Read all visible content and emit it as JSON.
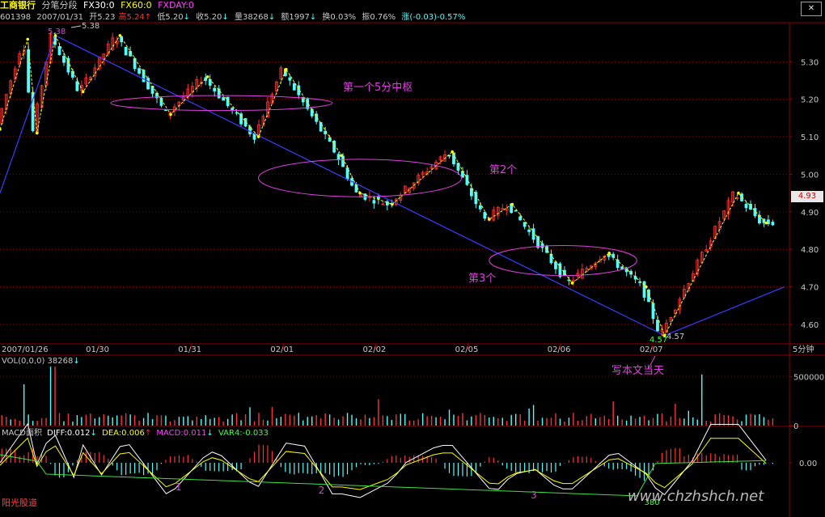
{
  "header": {
    "stock_name": "工商银行",
    "period_label": "分笔分段",
    "fx30": "FX30:0",
    "fx60": "FX60:0",
    "fxday": "FXDAY:0"
  },
  "quote": {
    "code": "601398",
    "date": "2007/01/31",
    "open": "开5.23",
    "high": "高5.24",
    "high_arrow": "↑",
    "low": "低5.20",
    "low_arrow": "↓",
    "close": "收5.20",
    "close_arrow": "↓",
    "volume": "量38268",
    "volume_arrow": "↓",
    "amount": "额1997",
    "amount_arrow": "↓",
    "turnover": "换0.03%",
    "amplitude": "振0.76%",
    "change": "涨(-0.03)-0.57%"
  },
  "price_tag": "4.93",
  "volume_panel": {
    "title": "VOL(0,0,0) 38268",
    "arrow": "↓"
  },
  "macd_panel": {
    "title": "MACD面积",
    "diff": "DIFF:0.012",
    "diff_arrow": "↓",
    "dea": "DEA:0.006",
    "dea_arrow": "↑",
    "macd": "MACD:0.011",
    "macd_arrow": "↓",
    "var4": "VAR4:-0.033"
  },
  "footer_name": "阳光股道",
  "watermark": "www.chzhshch.net",
  "colors": {
    "up": "#ff3232",
    "down": "#54fcfc",
    "stroke_line": "#ffff00",
    "trend_line": "#3c3cff",
    "annotation": "#e040e0",
    "grid": "#8b0000",
    "axis_text": "#c8c8c8"
  },
  "chart_data": [
    {
      "type": "candlestick",
      "title": "",
      "x_ticks": [
        "2007/01/26",
        "01/30",
        "01/31",
        "02/01",
        "02/02",
        "02/05",
        "02/06",
        "02/07"
      ],
      "y_ticks": [
        5.3,
        5.2,
        5.1,
        5.0,
        4.9,
        4.8,
        4.7,
        4.6
      ],
      "ylim": [
        4.55,
        5.4
      ],
      "period_label": "5分钟",
      "stroke_points": [
        {
          "x": 0.0,
          "y": 5.12
        },
        {
          "x": 0.3,
          "y": 5.36
        },
        {
          "x": 0.4,
          "y": 5.11
        },
        {
          "x": 0.6,
          "y": 5.37
        },
        {
          "x": 0.9,
          "y": 5.22
        },
        {
          "x": 1.3,
          "y": 5.37
        },
        {
          "x": 1.85,
          "y": 5.16
        },
        {
          "x": 2.25,
          "y": 5.26
        },
        {
          "x": 2.8,
          "y": 5.1
        },
        {
          "x": 3.1,
          "y": 5.28
        },
        {
          "x": 3.7,
          "y": 5.05
        },
        {
          "x": 3.9,
          "y": 4.95
        },
        {
          "x": 4.25,
          "y": 4.92
        },
        {
          "x": 4.9,
          "y": 5.06
        },
        {
          "x": 5.3,
          "y": 4.88
        },
        {
          "x": 5.55,
          "y": 4.92
        },
        {
          "x": 6.2,
          "y": 4.71
        },
        {
          "x": 6.6,
          "y": 4.79
        },
        {
          "x": 7.0,
          "y": 4.7
        },
        {
          "x": 7.2,
          "y": 4.57
        },
        {
          "x": 8.0,
          "y": 4.95
        },
        {
          "x": 8.3,
          "y": 4.87
        }
      ],
      "trend_lines": [
        {
          "from": {
            "x": 0.0,
            "y": 4.95
          },
          "to": {
            "x": 0.6,
            "y": 5.37
          }
        },
        {
          "from": {
            "x": 0.6,
            "y": 5.37
          },
          "to": {
            "x": 7.2,
            "y": 4.57
          }
        },
        {
          "from": {
            "x": 7.2,
            "y": 4.57
          },
          "to": {
            "x": 8.5,
            "y": 4.7
          }
        }
      ],
      "value_labels": [
        {
          "text": "5.38",
          "x": 0.75,
          "y": 5.38,
          "color": "#c8c8c8"
        },
        {
          "text": "4.57",
          "x": 7.3,
          "y": 4.57,
          "color": "#c8c8c8"
        }
      ],
      "zones": [
        {
          "label": "第一个5分中枢",
          "x_from": 1.2,
          "x_to": 3.6,
          "y_center": 5.19,
          "half_height": 0.02
        },
        {
          "label": "第2个",
          "x_from": 2.8,
          "x_to": 5.0,
          "y_center": 4.99,
          "half_height": 0.05
        },
        {
          "label": "第3个",
          "x_from": 5.3,
          "x_to": 6.9,
          "y_center": 4.77,
          "half_height": 0.04
        }
      ],
      "annotation": {
        "text": "写本文当天",
        "x": 7.0,
        "y": 4.48
      }
    },
    {
      "type": "bar",
      "title": "VOL(0,0,0) 38268",
      "y_ticks": [
        500000,
        0
      ],
      "ylim": [
        0,
        700000
      ]
    },
    {
      "type": "line",
      "title": "MACD面积",
      "y_ticks": [
        0.0
      ],
      "series": [
        {
          "name": "DIFF",
          "value": 0.012
        },
        {
          "name": "DEA",
          "value": 0.006
        },
        {
          "name": "MACD",
          "value": 0.011
        },
        {
          "name": "VAR4",
          "value": -0.033
        }
      ],
      "markers": [
        {
          "text": "1",
          "x": 1.9
        },
        {
          "text": "2",
          "x": 3.45
        },
        {
          "text": "3",
          "x": 5.75
        }
      ],
      "bottom_label": {
        "text": "380",
        "x": 6.98
      }
    }
  ]
}
